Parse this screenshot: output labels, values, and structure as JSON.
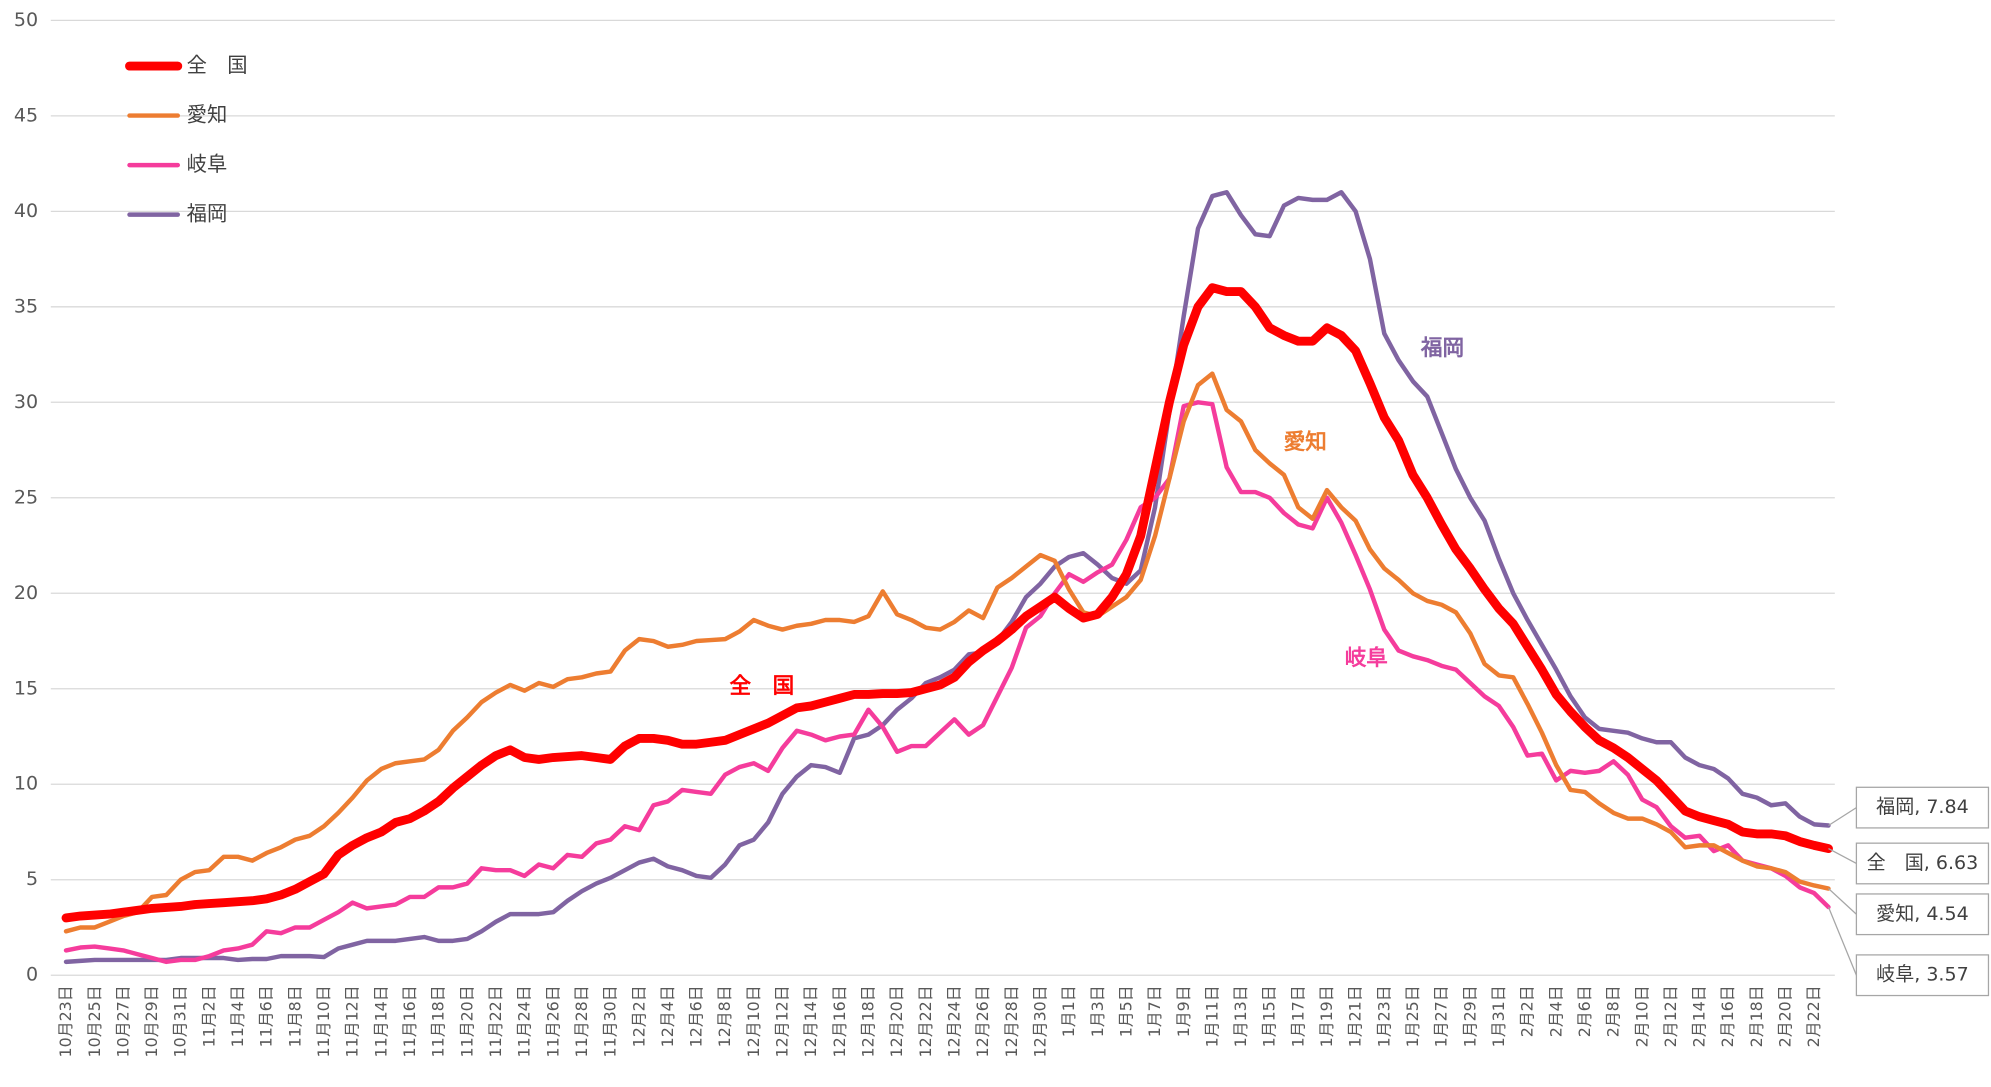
{
  "chart_data": {
    "type": "line",
    "categories": [
      "10月23日",
      null,
      "10月25日",
      null,
      "10月27日",
      null,
      "10月29日",
      null,
      "10月31日",
      null,
      "11月2日",
      null,
      "11月4日",
      null,
      "11月6日",
      null,
      "11月8日",
      null,
      "11月10日",
      null,
      "11月12日",
      null,
      "11月14日",
      null,
      "11月16日",
      null,
      "11月18日",
      null,
      "11月20日",
      null,
      "11月22日",
      null,
      "11月24日",
      null,
      "11月26日",
      null,
      "11月28日",
      null,
      "11月30日",
      null,
      "12月2日",
      null,
      "12月4日",
      null,
      "12月6日",
      null,
      "12月8日",
      null,
      "12月10日",
      null,
      "12月12日",
      null,
      "12月14日",
      null,
      "12月16日",
      null,
      "12月18日",
      null,
      "12月20日",
      null,
      "12月22日",
      null,
      "12月24日",
      null,
      "12月26日",
      null,
      "12月28日",
      null,
      "12月30日",
      null,
      "1月1日",
      null,
      "1月3日",
      null,
      "1月5日",
      null,
      "1月7日",
      null,
      "1月9日",
      null,
      "1月11日",
      null,
      "1月13日",
      null,
      "1月15日",
      null,
      "1月17日",
      null,
      "1月19日",
      null,
      "1月21日",
      null,
      "1月23日",
      null,
      "1月25日",
      null,
      "1月27日",
      null,
      "1月29日",
      null,
      "1月31日",
      null,
      "2月2日",
      null,
      "2月4日",
      null,
      "2月6日",
      null,
      "2月8日",
      null,
      "2月10日",
      null,
      "2月12日",
      null,
      "2月14日",
      null,
      "2月16日",
      null,
      "2月18日",
      null,
      "2月20日",
      null,
      "2月22日",
      null
    ],
    "series": [
      {
        "name": "全　国",
        "color": "#ff0000",
        "line_width": 7,
        "end_label": "全　国, 6.63",
        "values": [
          3.0,
          3.1,
          3.15,
          3.2,
          3.3,
          3.4,
          3.5,
          3.55,
          3.6,
          3.7,
          3.75,
          3.8,
          3.85,
          3.9,
          4.0,
          4.2,
          4.5,
          4.9,
          5.3,
          6.3,
          6.8,
          7.2,
          7.5,
          8.0,
          8.2,
          8.6,
          9.1,
          9.8,
          10.4,
          11.0,
          11.5,
          11.8,
          11.4,
          11.3,
          11.4,
          11.45,
          11.5,
          11.4,
          11.3,
          12.0,
          12.4,
          12.4,
          12.3,
          12.1,
          12.1,
          12.2,
          12.3,
          12.6,
          12.9,
          13.2,
          13.6,
          14.0,
          14.1,
          14.3,
          14.5,
          14.7,
          14.7,
          14.75,
          14.75,
          14.8,
          15.0,
          15.2,
          15.6,
          16.4,
          17.0,
          17.5,
          18.1,
          18.8,
          19.3,
          19.8,
          19.2,
          18.7,
          18.9,
          19.8,
          21.0,
          23.0,
          26.5,
          30.0,
          33.0,
          35.0,
          36.0,
          35.8,
          35.8,
          35.0,
          33.9,
          33.5,
          33.2,
          33.2,
          33.9,
          33.5,
          32.7,
          31.0,
          29.2,
          28.0,
          26.2,
          25.0,
          23.6,
          22.3,
          21.3,
          20.2,
          19.2,
          18.4,
          17.2,
          16.0,
          14.7,
          13.8,
          13.0,
          12.3,
          11.9,
          11.4,
          10.8,
          10.2,
          9.4,
          8.6,
          8.3,
          8.1,
          7.9,
          7.5,
          7.4,
          7.4,
          7.3,
          7.0,
          6.8,
          6.63
        ]
      },
      {
        "name": "愛知",
        "color": "#ed7d31",
        "line_width": 3.5,
        "end_label": "愛知, 4.54",
        "values": [
          2.3,
          2.5,
          2.5,
          2.8,
          3.1,
          3.3,
          4.1,
          4.2,
          5.0,
          5.4,
          5.5,
          6.2,
          6.2,
          6.0,
          6.4,
          6.7,
          7.1,
          7.3,
          7.8,
          8.5,
          9.3,
          10.2,
          10.8,
          11.1,
          11.2,
          11.3,
          11.8,
          12.8,
          13.5,
          14.3,
          14.8,
          15.2,
          14.9,
          15.3,
          15.1,
          15.5,
          15.6,
          15.8,
          15.9,
          17.0,
          17.6,
          17.5,
          17.2,
          17.3,
          17.5,
          17.55,
          17.6,
          18.0,
          18.6,
          18.3,
          18.1,
          18.3,
          18.4,
          18.6,
          18.6,
          18.5,
          18.8,
          20.1,
          18.9,
          18.6,
          18.2,
          18.1,
          18.5,
          19.1,
          18.7,
          20.3,
          20.8,
          21.4,
          22.0,
          21.7,
          20.2,
          19.0,
          18.8,
          19.3,
          19.8,
          20.7,
          23.0,
          26.0,
          29.0,
          30.9,
          31.5,
          29.6,
          29.0,
          27.5,
          26.8,
          26.2,
          24.5,
          23.9,
          25.4,
          24.5,
          23.8,
          22.3,
          21.3,
          20.7,
          20.0,
          19.6,
          19.4,
          19.0,
          17.9,
          16.3,
          15.7,
          15.6,
          14.2,
          12.7,
          11.0,
          9.7,
          9.6,
          9.0,
          8.5,
          8.2,
          8.2,
          7.9,
          7.5,
          6.7,
          6.8,
          6.8,
          6.4,
          6.0,
          5.7,
          5.6,
          5.4,
          4.9,
          4.7,
          4.54
        ]
      },
      {
        "name": "岐阜",
        "color": "#f53c9c",
        "line_width": 3.5,
        "end_label": "岐阜, 3.57",
        "values": [
          1.3,
          1.45,
          1.5,
          1.4,
          1.3,
          1.1,
          0.9,
          0.7,
          0.8,
          0.8,
          1.0,
          1.3,
          1.4,
          1.6,
          2.3,
          2.2,
          2.5,
          2.5,
          2.9,
          3.3,
          3.8,
          3.5,
          3.6,
          3.7,
          4.1,
          4.1,
          4.6,
          4.6,
          4.8,
          5.6,
          5.5,
          5.5,
          5.2,
          5.8,
          5.6,
          6.3,
          6.2,
          6.9,
          7.1,
          7.8,
          7.6,
          8.9,
          9.1,
          9.7,
          9.6,
          9.5,
          10.5,
          10.9,
          11.1,
          10.7,
          11.9,
          12.8,
          12.6,
          12.3,
          12.5,
          12.6,
          13.9,
          13.0,
          11.7,
          12.0,
          12.0,
          12.7,
          13.4,
          12.6,
          13.1,
          14.6,
          16.1,
          18.2,
          18.8,
          20.0,
          21.0,
          20.6,
          21.1,
          21.5,
          22.8,
          24.5,
          25.0,
          26.0,
          29.8,
          30.0,
          29.9,
          26.6,
          25.3,
          25.3,
          25.0,
          24.2,
          23.6,
          23.4,
          25.0,
          23.7,
          22.0,
          20.2,
          18.1,
          17.0,
          16.7,
          16.5,
          16.2,
          16.0,
          15.3,
          14.6,
          14.1,
          13.0,
          11.5,
          11.6,
          10.2,
          10.7,
          10.6,
          10.7,
          11.2,
          10.5,
          9.2,
          8.8,
          7.8,
          7.2,
          7.3,
          6.5,
          6.8,
          6.0,
          5.8,
          5.6,
          5.2,
          4.6,
          4.3,
          3.57
        ]
      },
      {
        "name": "福岡",
        "color": "#8064a2",
        "line_width": 3.5,
        "end_label": "福岡, 7.84",
        "values": [
          0.7,
          0.75,
          0.8,
          0.8,
          0.8,
          0.8,
          0.8,
          0.8,
          0.9,
          0.9,
          0.9,
          0.9,
          0.8,
          0.85,
          0.85,
          1.0,
          1.0,
          1.0,
          0.95,
          1.4,
          1.6,
          1.8,
          1.8,
          1.8,
          1.9,
          2.0,
          1.8,
          1.8,
          1.9,
          2.3,
          2.8,
          3.2,
          3.2,
          3.2,
          3.3,
          3.9,
          4.4,
          4.8,
          5.1,
          5.5,
          5.9,
          6.1,
          5.7,
          5.5,
          5.2,
          5.1,
          5.8,
          6.8,
          7.1,
          8.0,
          9.5,
          10.4,
          11.0,
          10.9,
          10.6,
          12.4,
          12.6,
          13.1,
          13.9,
          14.5,
          15.3,
          15.6,
          16.0,
          16.8,
          16.9,
          17.5,
          18.5,
          19.8,
          20.5,
          21.4,
          21.9,
          22.1,
          21.5,
          20.8,
          20.5,
          21.2,
          24.5,
          29.5,
          34.5,
          39.1,
          40.8,
          41.0,
          39.8,
          38.8,
          38.7,
          40.3,
          40.7,
          40.6,
          40.6,
          41.0,
          40.0,
          37.5,
          33.6,
          32.2,
          31.1,
          30.3,
          28.4,
          26.5,
          25.0,
          23.8,
          21.8,
          20.0,
          18.6,
          17.3,
          16.0,
          14.6,
          13.5,
          12.9,
          12.8,
          12.7,
          12.4,
          12.2,
          12.2,
          11.4,
          11.0,
          10.8,
          10.3,
          9.5,
          9.3,
          8.9,
          9.0,
          8.3,
          7.9,
          7.84
        ]
      }
    ],
    "annotations": [
      {
        "text": "全　国",
        "series": 0
      },
      {
        "text": "愛知",
        "series": 1
      },
      {
        "text": "岐阜",
        "series": 2
      },
      {
        "text": "福岡",
        "series": 3
      }
    ],
    "ylim": [
      0,
      50
    ],
    "yticks": [
      0,
      5,
      10,
      15,
      20,
      25,
      30,
      35,
      40,
      45,
      50
    ],
    "grid": true,
    "legend": "upper left"
  }
}
